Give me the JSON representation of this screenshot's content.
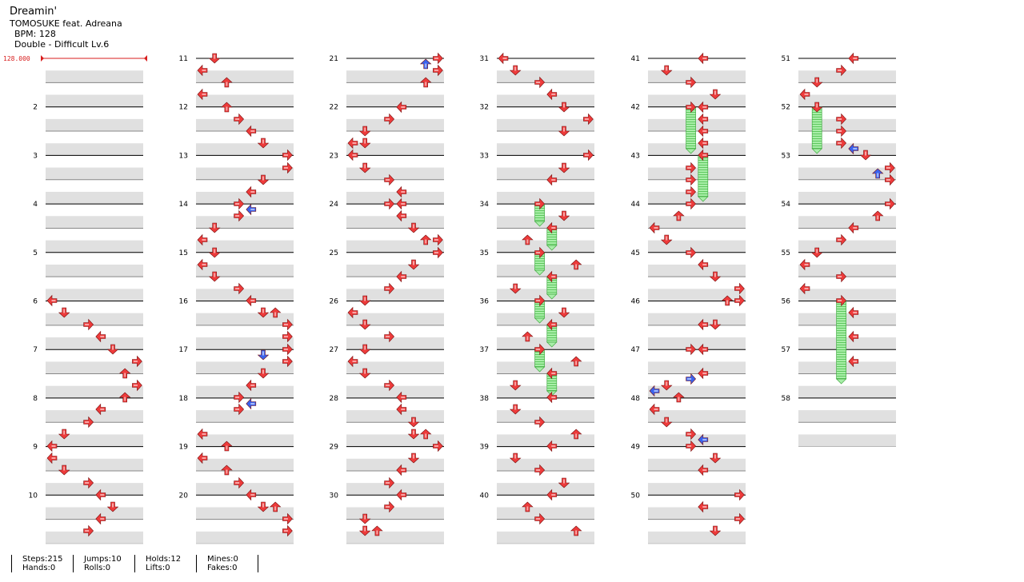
{
  "song": {
    "title": "Dreamin'",
    "artist": "TOMOSUKE feat. Adreana",
    "bpm_line": "BPM: 128",
    "difficulty_line": "Double - Difficult Lv.6"
  },
  "bpm_marker": "128.000",
  "colors": {
    "arrow": "#ee3b3b",
    "arrow_alt": "#3a63ee",
    "hold": "#8ee68e",
    "band": "#e0e0e0",
    "bpm": "#d81e1e"
  },
  "measure_numbers": [
    "",
    "2",
    "3",
    "4",
    "5",
    "6",
    "7",
    "8",
    "9",
    "10",
    "11",
    "12",
    "13",
    "14",
    "15",
    "16",
    "17",
    "18",
    "19",
    "20",
    "21",
    "22",
    "23",
    "24",
    "25",
    "26",
    "27",
    "28",
    "29",
    "30",
    "31",
    "32",
    "33",
    "34",
    "35",
    "36",
    "37",
    "38",
    "39",
    "40",
    "41",
    "42",
    "43",
    "44",
    "45",
    "46",
    "47",
    "48",
    "49",
    "50",
    "51",
    "52",
    "53",
    "54",
    "55",
    "56",
    "57",
    "58"
  ],
  "stats": [
    {
      "a": "Steps:215",
      "b": "Hands:0"
    },
    {
      "a": "Jumps:10",
      "b": "Rolls:0"
    },
    {
      "a": "Holds:12",
      "b": "Lifts:0"
    },
    {
      "a": "Mines:0",
      "b": "Fakes:0"
    }
  ]
}
